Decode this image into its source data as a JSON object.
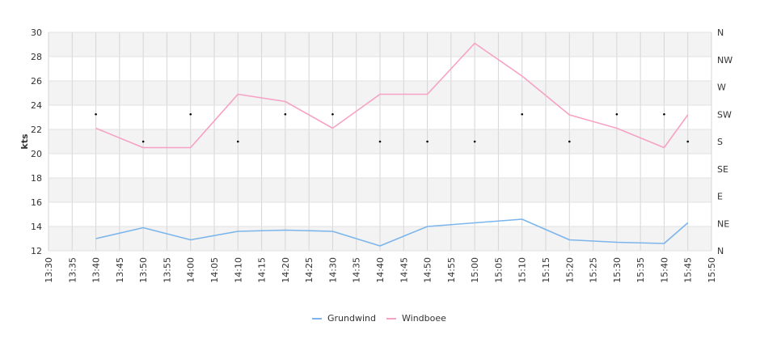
{
  "chart_data": {
    "type": "line",
    "ylabel": "kts",
    "ylim": [
      12,
      30
    ],
    "yticks": [
      "12",
      "14",
      "16",
      "18",
      "20",
      "22",
      "24",
      "26",
      "28",
      "30"
    ],
    "xlim": [
      "13:30",
      "15:50"
    ],
    "xticks": [
      "13:30",
      "13:35",
      "13:40",
      "13:45",
      "13:50",
      "13:55",
      "14:00",
      "14:05",
      "14:10",
      "14:15",
      "14:20",
      "14:25",
      "14:30",
      "14:35",
      "14:40",
      "14:45",
      "14:50",
      "14:55",
      "15:00",
      "15:05",
      "15:10",
      "15:15",
      "15:20",
      "15:25",
      "15:30",
      "15:35",
      "15:40",
      "15:45",
      "15:50"
    ],
    "y2ticks": [
      "N",
      "NE",
      "E",
      "SE",
      "S",
      "SW",
      "W",
      "NW",
      "N"
    ],
    "grid": true,
    "legend_position": "bottom",
    "series": [
      {
        "name": "Grundwind",
        "color": "#7cb5ec",
        "x": [
          "13:40",
          "13:50",
          "14:00",
          "14:10",
          "14:20",
          "14:30",
          "14:40",
          "14:50",
          "15:00",
          "15:10",
          "15:20",
          "15:30",
          "15:40",
          "15:45"
        ],
        "values": [
          13.0,
          13.9,
          12.9,
          13.6,
          13.7,
          13.6,
          12.4,
          14.0,
          14.3,
          14.6,
          12.9,
          12.7,
          12.6,
          14.3
        ]
      },
      {
        "name": "Windboee",
        "color": "#f7a1c4",
        "x": [
          "13:40",
          "13:50",
          "14:00",
          "14:10",
          "14:20",
          "14:30",
          "14:40",
          "14:50",
          "15:00",
          "15:10",
          "15:20",
          "15:30",
          "15:40",
          "15:45"
        ],
        "values": [
          22.1,
          20.5,
          20.5,
          24.9,
          24.3,
          22.1,
          24.9,
          24.9,
          29.1,
          26.4,
          23.2,
          22.1,
          20.5,
          23.2
        ]
      }
    ],
    "direction_series": {
      "x": [
        "13:40",
        "13:50",
        "14:00",
        "14:10",
        "14:20",
        "14:30",
        "14:40",
        "14:50",
        "15:00",
        "15:10",
        "15:20",
        "15:30",
        "15:40",
        "15:45"
      ],
      "values": [
        "SW",
        "S",
        "SW",
        "S",
        "SW",
        "SW",
        "S",
        "S",
        "S",
        "SW",
        "S",
        "SW",
        "SW",
        "S"
      ]
    }
  }
}
